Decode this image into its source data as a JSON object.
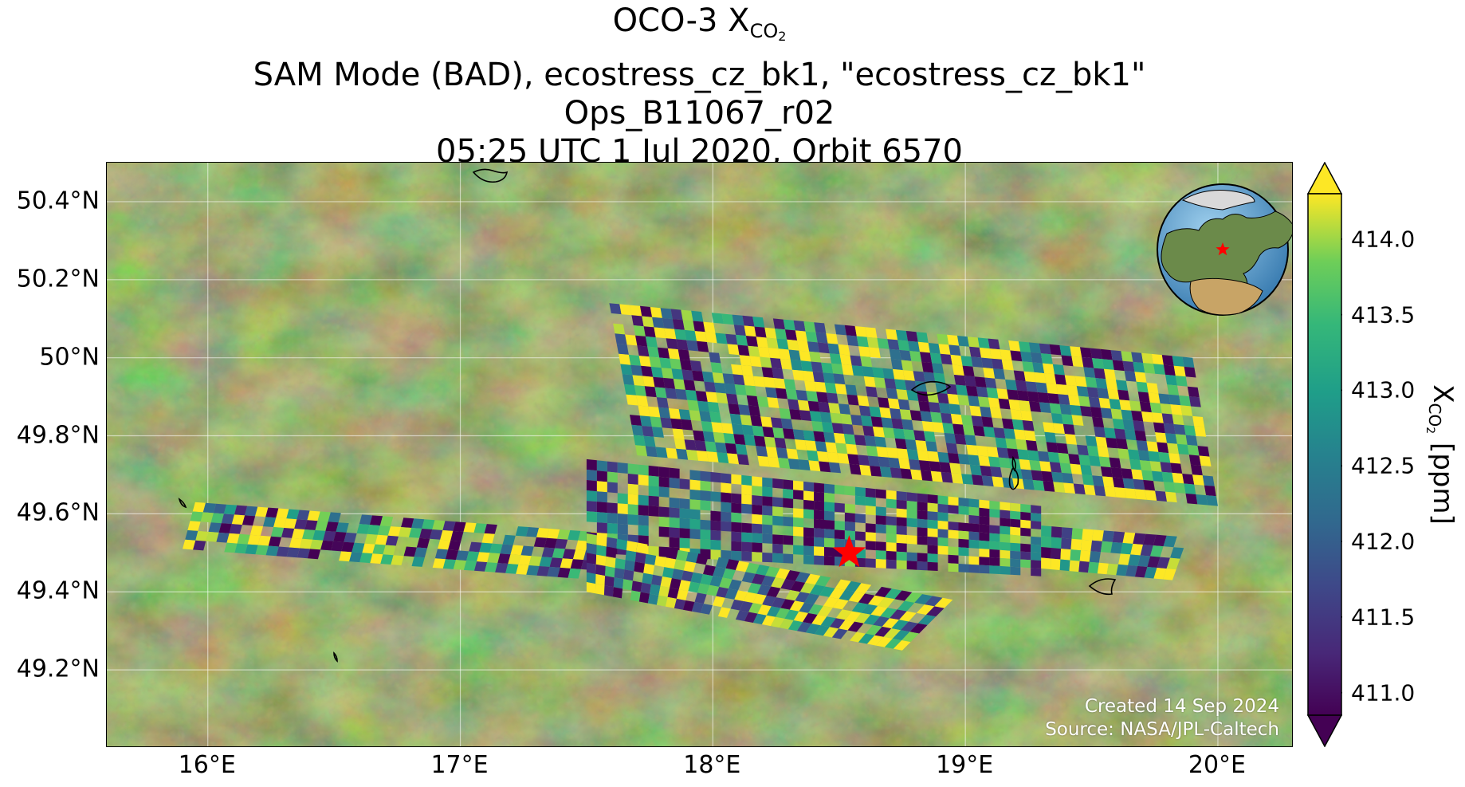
{
  "title": {
    "line1_prefix": "OCO-3 X",
    "line1_sub": "CO",
    "line1_subsub": "2",
    "line2": "SAM Mode (BAD), ecostress_cz_bk1, \"ecostress_cz_bk1\"",
    "line3": "Ops_B11067_r02",
    "line4": "05:25 UTC 1 Jul 2020, Orbit 6570"
  },
  "map": {
    "extent": {
      "lon": [
        15.6,
        20.3
      ],
      "lat": [
        49.0,
        50.5
      ]
    },
    "target_marker": {
      "symbol": "red-star",
      "lon": 18.54,
      "lat": 49.5,
      "color": "#ff0000"
    },
    "gridlines": true,
    "basemap": "satellite imagery (green/brown terrain)",
    "lat_ticks": [
      {
        "value": 50.4,
        "label": "50.4°N"
      },
      {
        "value": 50.2,
        "label": "50.2°N"
      },
      {
        "value": 50.0,
        "label": "50°N"
      },
      {
        "value": 49.8,
        "label": "49.8°N"
      },
      {
        "value": 49.6,
        "label": "49.6°N"
      },
      {
        "value": 49.4,
        "label": "49.4°N"
      },
      {
        "value": 49.2,
        "label": "49.2°N"
      }
    ],
    "lon_ticks": [
      {
        "value": 16,
        "label": "16°E"
      },
      {
        "value": 17,
        "label": "17°E"
      },
      {
        "value": 18,
        "label": "18°E"
      },
      {
        "value": 19,
        "label": "19°E"
      },
      {
        "value": 20,
        "label": "20°E"
      }
    ],
    "swaths": [
      {
        "name": "north-scan",
        "corners": [
          [
            17.59,
            50.14
          ],
          [
            19.9,
            50.0
          ],
          [
            20.0,
            49.62
          ],
          [
            17.7,
            49.75
          ]
        ],
        "seed": 11,
        "mean": 0.55
      },
      {
        "name": "west-scan",
        "corners": [
          [
            15.95,
            49.63
          ],
          [
            17.6,
            49.55
          ],
          [
            17.55,
            49.43
          ],
          [
            15.9,
            49.51
          ]
        ],
        "seed": 3,
        "mean": 0.6
      },
      {
        "name": "center-scan",
        "corners": [
          [
            17.5,
            49.74
          ],
          [
            19.3,
            49.62
          ],
          [
            19.3,
            49.44
          ],
          [
            17.5,
            49.5
          ]
        ],
        "seed": 7,
        "mean": 0.45
      },
      {
        "name": "east-scan",
        "corners": [
          [
            19.3,
            49.57
          ],
          [
            19.88,
            49.54
          ],
          [
            19.82,
            49.43
          ],
          [
            19.3,
            49.46
          ]
        ],
        "seed": 5,
        "mean": 0.65
      },
      {
        "name": "south-scan",
        "corners": [
          [
            17.5,
            49.55
          ],
          [
            18.95,
            49.38
          ],
          [
            18.75,
            49.25
          ],
          [
            17.5,
            49.4
          ]
        ],
        "seed": 9,
        "mean": 0.6
      }
    ],
    "credit_line1": "Created 14 Sep 2024",
    "credit_line2": "Source: NASA/JPL-Caltech",
    "inset_globe": {
      "type": "orthographic globe with red star at target"
    }
  },
  "colorbar": {
    "colormap": "viridis",
    "range": [
      410.85,
      414.3
    ],
    "extend": "both",
    "ticks": [
      {
        "value": 414.0,
        "label": "414.0"
      },
      {
        "value": 413.5,
        "label": "413.5"
      },
      {
        "value": 413.0,
        "label": "413.0"
      },
      {
        "value": 412.5,
        "label": "412.5"
      },
      {
        "value": 412.0,
        "label": "412.0"
      },
      {
        "value": 411.5,
        "label": "411.5"
      },
      {
        "value": 411.0,
        "label": "411.0"
      }
    ],
    "label_prefix": "X",
    "label_sub": "CO",
    "label_subsub": "2",
    "label_suffix": " [ppm]"
  }
}
